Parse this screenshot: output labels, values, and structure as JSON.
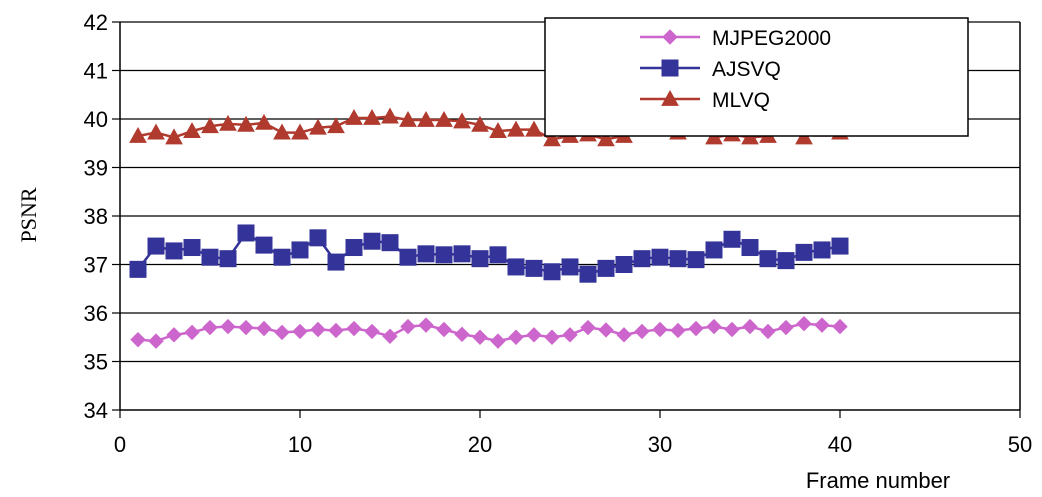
{
  "chart_data": {
    "type": "line",
    "title": "",
    "xlabel": "Frame number",
    "ylabel": "PSNR",
    "xlim": [
      0,
      50
    ],
    "ylim": [
      34,
      42
    ],
    "xticks": [
      "0",
      "10",
      "20",
      "30",
      "40",
      "50"
    ],
    "yticks": [
      "34",
      "35",
      "36",
      "37",
      "38",
      "39",
      "40",
      "41",
      "42"
    ],
    "grid": "horizontal",
    "legend_position": "top-right",
    "x": [
      1,
      2,
      3,
      4,
      5,
      6,
      7,
      8,
      9,
      10,
      11,
      12,
      13,
      14,
      15,
      16,
      17,
      18,
      19,
      20,
      21,
      22,
      23,
      24,
      25,
      26,
      27,
      28,
      29,
      30,
      31,
      32,
      33,
      34,
      35,
      36,
      37,
      38,
      39,
      40
    ],
    "series": [
      {
        "name": "MJPEG2000",
        "color": "#CC66CC",
        "marker": "diamond",
        "values": [
          35.45,
          35.42,
          35.55,
          35.6,
          35.7,
          35.72,
          35.7,
          35.68,
          35.6,
          35.62,
          35.66,
          35.64,
          35.68,
          35.62,
          35.52,
          35.72,
          35.75,
          35.66,
          35.56,
          35.5,
          35.42,
          35.5,
          35.55,
          35.5,
          35.55,
          35.7,
          35.65,
          35.55,
          35.62,
          35.66,
          35.64,
          35.68,
          35.72,
          35.66,
          35.72,
          35.62,
          35.7,
          35.78,
          35.75,
          35.72
        ]
      },
      {
        "name": "AJSVQ",
        "color": "#333399",
        "marker": "square",
        "values": [
          36.9,
          37.38,
          37.28,
          37.35,
          37.15,
          37.12,
          37.65,
          37.4,
          37.15,
          37.3,
          37.55,
          37.05,
          37.35,
          37.48,
          37.45,
          37.15,
          37.22,
          37.2,
          37.22,
          37.12,
          37.2,
          36.95,
          36.92,
          36.85,
          36.95,
          36.8,
          36.92,
          37.0,
          37.12,
          37.15,
          37.12,
          37.1,
          37.3,
          37.52,
          37.35,
          37.12,
          37.08,
          37.25,
          37.3,
          37.38
        ]
      },
      {
        "name": "MLVQ",
        "color": "#B03A2E",
        "marker": "triangle",
        "values": [
          39.65,
          39.72,
          39.62,
          39.75,
          39.85,
          39.9,
          39.88,
          39.92,
          39.72,
          39.72,
          39.82,
          39.85,
          40.02,
          40.02,
          40.05,
          39.98,
          39.98,
          39.98,
          39.95,
          39.88,
          39.75,
          39.78,
          39.78,
          39.58,
          39.65,
          39.68,
          39.58,
          39.65,
          39.9,
          39.88,
          39.72,
          39.82,
          39.62,
          39.68,
          39.62,
          39.65,
          39.88,
          39.62,
          39.78,
          39.72
        ]
      }
    ]
  }
}
